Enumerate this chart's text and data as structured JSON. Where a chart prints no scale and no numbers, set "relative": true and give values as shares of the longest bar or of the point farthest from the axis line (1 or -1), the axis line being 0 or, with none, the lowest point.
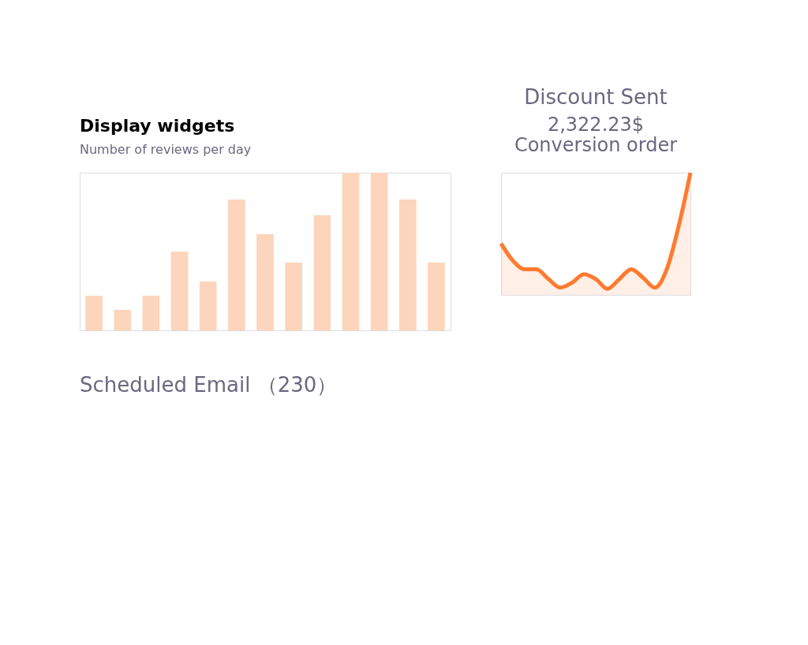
{
  "chart_data": [
    {
      "type": "bar",
      "title": "Display widgets",
      "subtitle": "Number of reviews per day",
      "relative": true,
      "categories": [
        null,
        null,
        null,
        null,
        null,
        null,
        null,
        null,
        null,
        null,
        null,
        null,
        null
      ],
      "values": [
        0.22,
        0.13,
        0.22,
        0.5,
        0.31,
        0.83,
        0.61,
        0.43,
        0.73,
        1,
        1,
        0.83,
        0.43
      ],
      "color": "#fdd5bc",
      "annotations": [
        "Scheduled Email （230）"
      ]
    },
    {
      "type": "area",
      "title": "Discount Sent",
      "annotations": [
        "2,322.23$",
        "Conversion order"
      ],
      "relative": true,
      "categories": [
        null,
        null,
        null,
        null,
        null,
        null,
        null,
        null,
        null,
        null,
        null,
        null,
        null,
        null,
        null,
        null,
        null
      ],
      "series": [
        {
          "color": "#ff7a2f",
          "values": [
            0.42,
            0.28,
            0.21,
            0.21,
            0.13,
            0.06,
            0.1,
            0.17,
            0.13,
            0.05,
            0.13,
            0.21,
            0.14,
            0.06,
            0.21,
            0.56,
            1
          ]
        }
      ]
    }
  ]
}
